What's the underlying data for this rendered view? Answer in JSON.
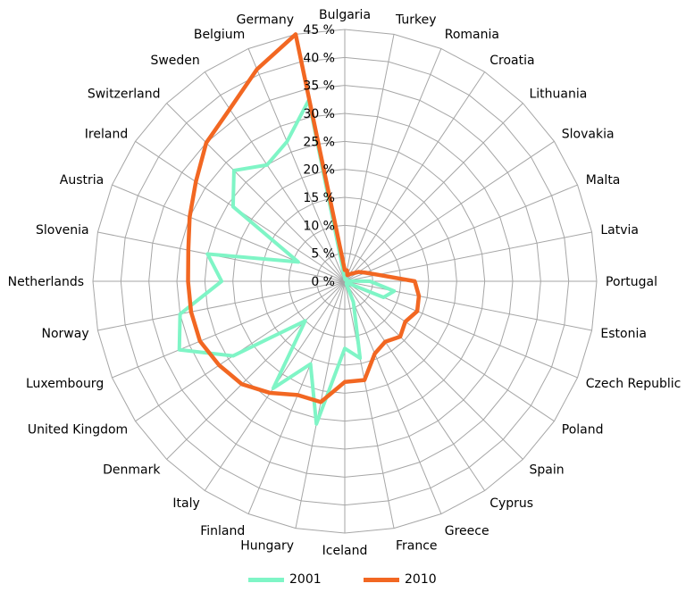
{
  "chart_data": {
    "type": "radar",
    "title": "",
    "categories": [
      "Bulgaria",
      "Turkey",
      "Romania",
      "Croatia",
      "Lithuania",
      "Slovakia",
      "Malta",
      "Latvia",
      "Portugal",
      "Estonia",
      "Czech Republic",
      "Poland",
      "Spain",
      "Cyprus",
      "Greece",
      "France",
      "Iceland",
      "Hungary",
      "Finland",
      "Italy",
      "Denmark",
      "United Kingdom",
      "Luxembourg",
      "Norway",
      "Netherlands",
      "Slovenia",
      "Austria",
      "Ireland",
      "Switzerland",
      "Sweden",
      "Belgium",
      "Germany"
    ],
    "r_ticks": [
      "0 %",
      "5 %",
      "10 %",
      "15 %",
      "20 %",
      "25 %",
      "30 %",
      "35 %",
      "40 %",
      "45 %"
    ],
    "rlim": [
      0,
      45
    ],
    "grid": true,
    "legend_position": "bottom",
    "series": [
      {
        "name": "2001",
        "color": "#7ff5c6",
        "values": [
          0.5,
          0.3,
          0.3,
          0.3,
          0.5,
          0.3,
          0.3,
          0.3,
          4.5,
          9.0,
          7.5,
          0.5,
          0.5,
          0.5,
          4.0,
          14.0,
          12.0,
          26.0,
          16.0,
          23.0,
          10.0,
          24.0,
          32.0,
          30.0,
          22.0,
          25.0,
          9.0,
          24.0,
          28.0,
          25.0,
          27.0,
          33.0
        ]
      },
      {
        "name": "2010",
        "color": "#f26722",
        "values": [
          2.0,
          2.0,
          1.2,
          1.5,
          2.0,
          3.0,
          4.0,
          6.0,
          12.5,
          13.5,
          14.0,
          13.0,
          14.0,
          13.0,
          14.0,
          18.0,
          18.0,
          22.0,
          22.0,
          24.0,
          26.0,
          27.0,
          28.0,
          28.0,
          28.0,
          28.5,
          30.0,
          32.0,
          35.0,
          37.0,
          41.0,
          45.0
        ]
      }
    ]
  }
}
